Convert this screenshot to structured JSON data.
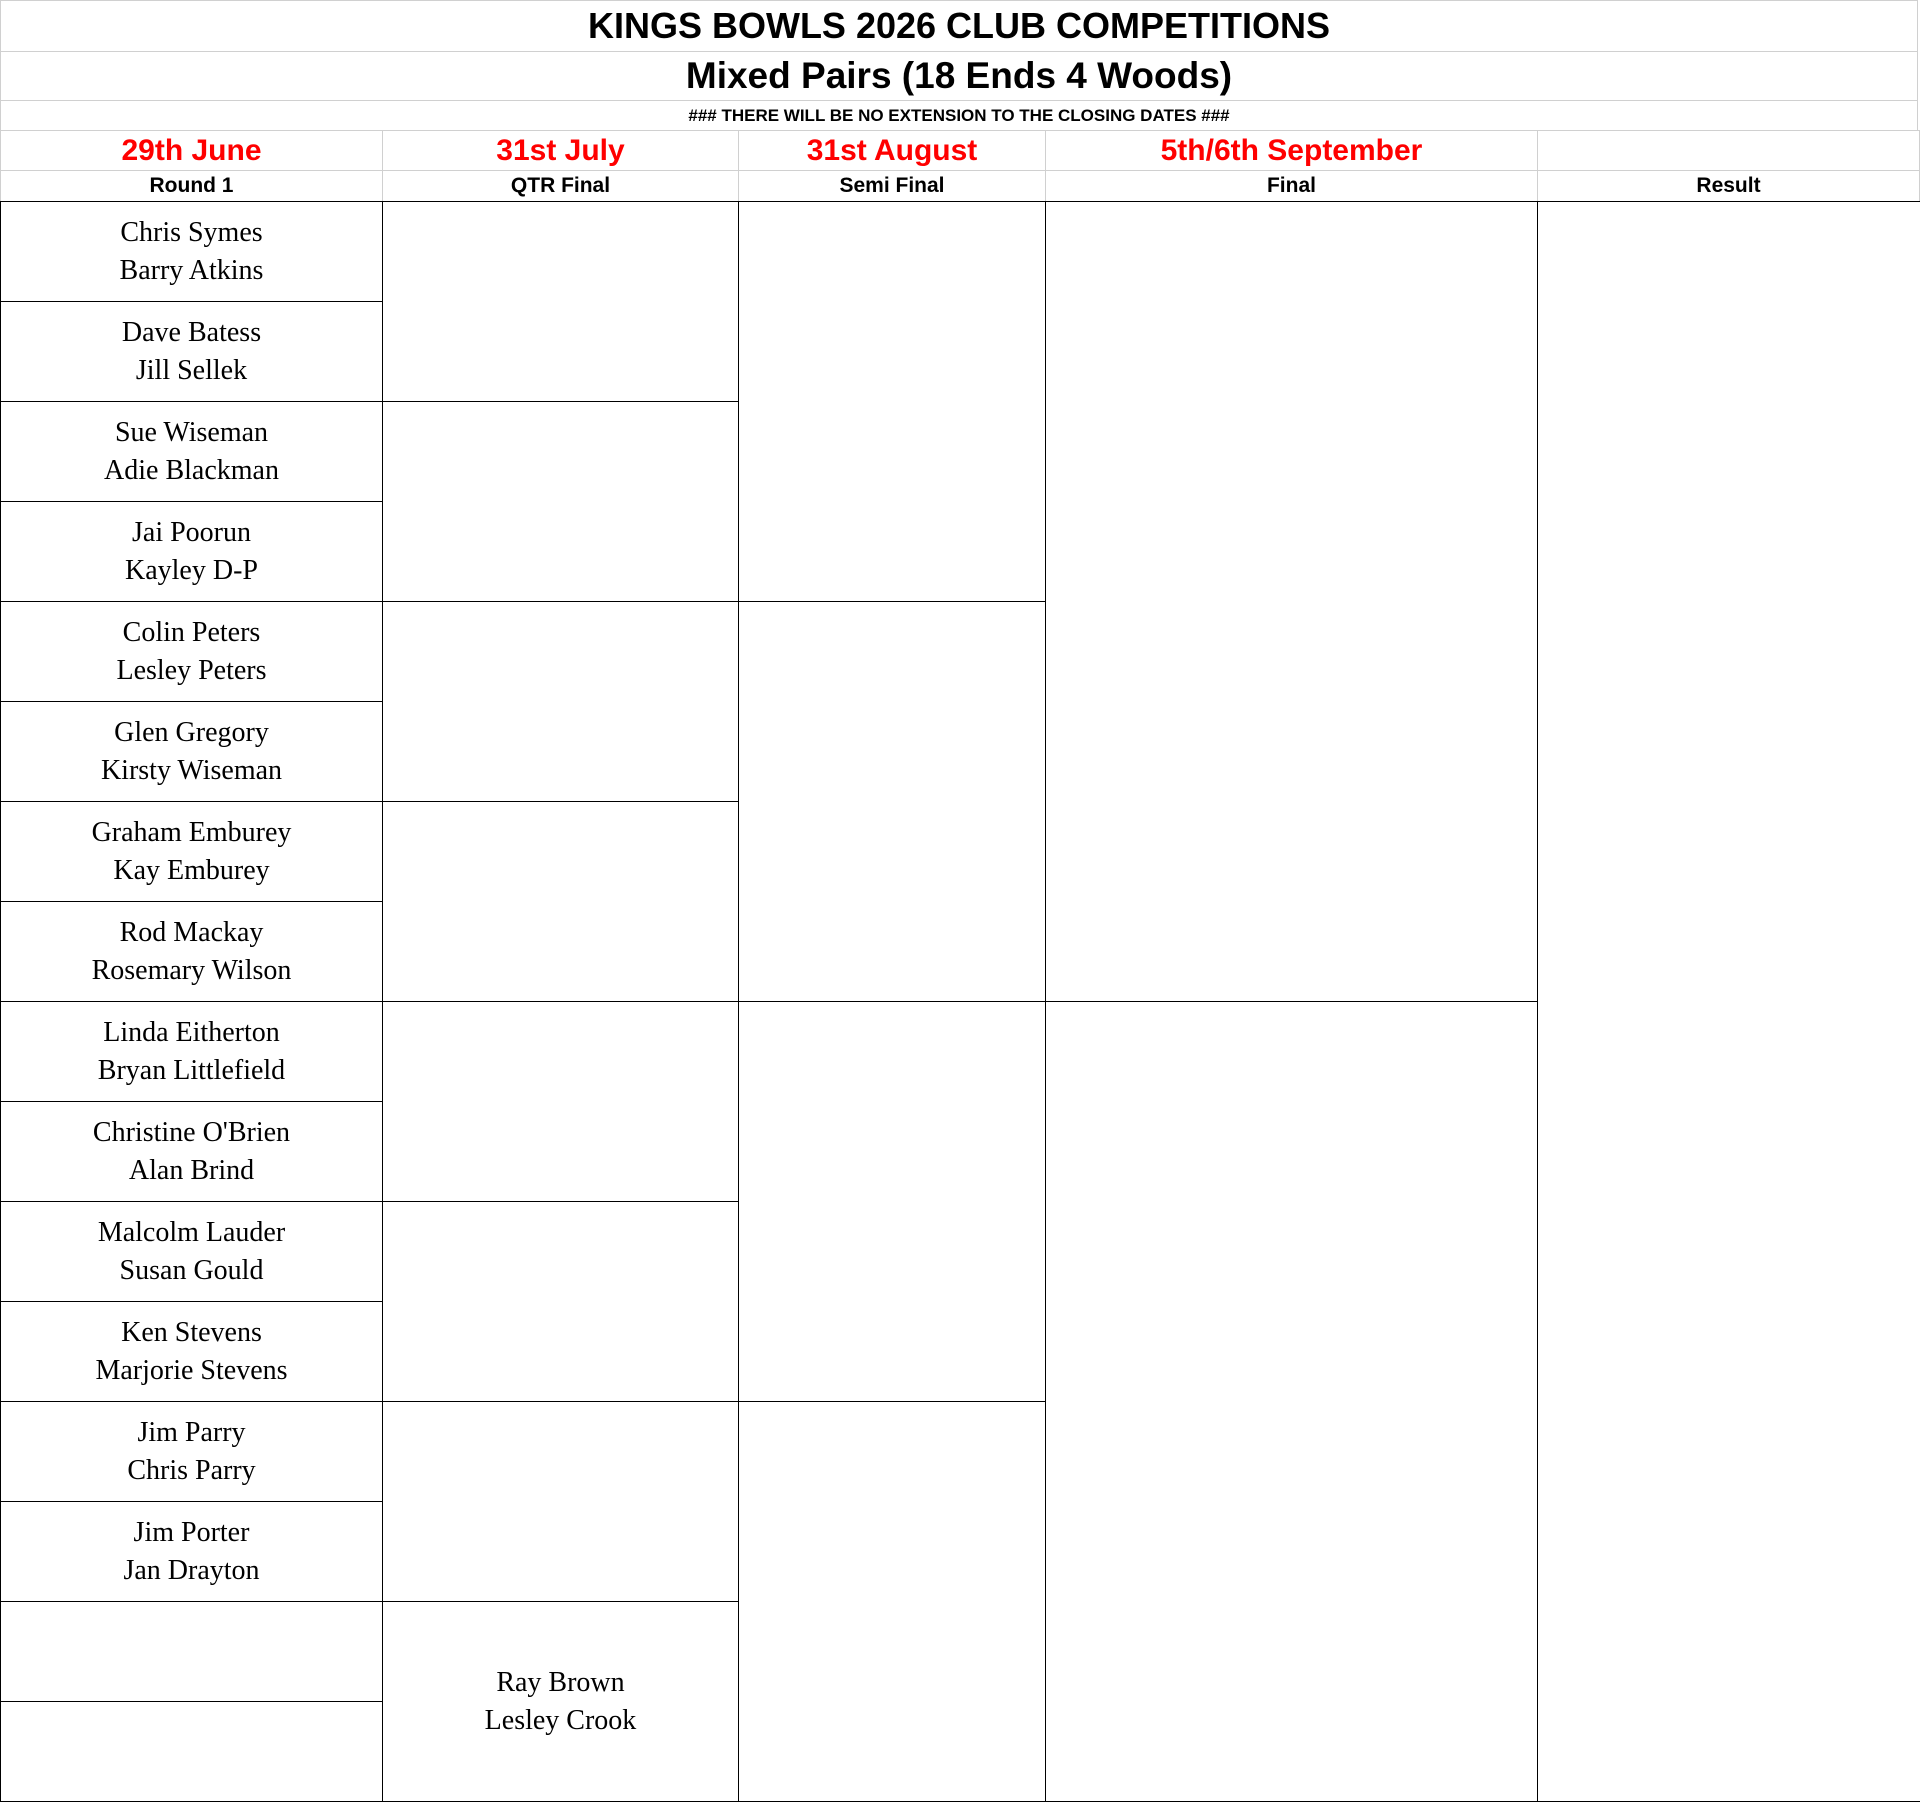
{
  "header": {
    "title": "KINGS BOWLS 2026 CLUB COMPETITIONS",
    "subtitle": "Mixed Pairs (18 Ends 4 Woods)",
    "note": "###  THERE WILL BE NO EXTENSION TO THE CLOSING DATES  ###"
  },
  "columns": [
    {
      "date": "29th June",
      "label": "Round 1"
    },
    {
      "date": "31st July",
      "label": "QTR Final"
    },
    {
      "date": "31st August",
      "label": "Semi Final"
    },
    {
      "date": "5th/6th September",
      "label": "Final"
    },
    {
      "label": "Result"
    }
  ],
  "round1": [
    [
      "Chris Symes",
      "Barry Atkins"
    ],
    [
      "Dave Batess",
      "Jill Sellek"
    ],
    [
      "Sue Wiseman",
      "Adie Blackman"
    ],
    [
      "Jai Poorun",
      "Kayley D-P"
    ],
    [
      "Colin Peters",
      "Lesley Peters"
    ],
    [
      "Glen Gregory",
      "Kirsty Wiseman"
    ],
    [
      "Graham Emburey",
      "Kay Emburey"
    ],
    [
      "Rod Mackay",
      "Rosemary Wilson"
    ],
    [
      "Linda Eitherton",
      "Bryan Littlefield"
    ],
    [
      "Christine O'Brien",
      "Alan Brind"
    ],
    [
      "Malcolm Lauder",
      "Susan Gould"
    ],
    [
      "Ken Stevens",
      "Marjorie Stevens"
    ],
    [
      "Jim Parry",
      "Chris Parry"
    ],
    [
      "Jim Porter",
      "Jan Drayton"
    ]
  ],
  "qtr_final": [
    [
      "Ray Brown",
      "Lesley Crook"
    ]
  ]
}
